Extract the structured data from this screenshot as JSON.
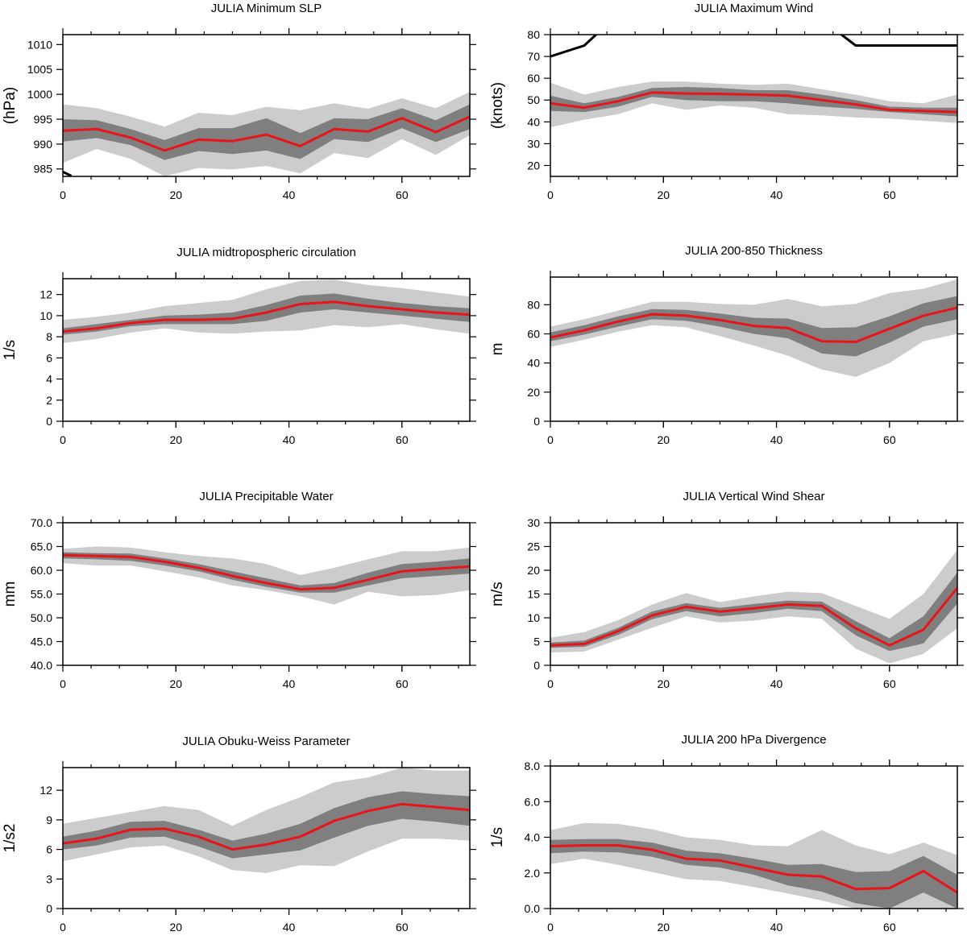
{
  "chart_data": [
    {
      "type": "line",
      "title": "JULIA Minimum SLP",
      "xlabel": "",
      "ylabel": "(hPa)",
      "xlim": [
        0,
        72
      ],
      "ylim": [
        983.5,
        1012
      ],
      "xticks": [
        0,
        20,
        40,
        60
      ],
      "yticks": [
        985,
        990,
        995,
        1000,
        1005,
        1010
      ],
      "ytick_labels": [
        "985",
        "990",
        "995",
        "1000",
        "1005",
        "1010"
      ],
      "x": [
        0,
        6,
        12,
        18,
        24,
        30,
        36,
        42,
        48,
        54,
        60,
        66,
        72
      ],
      "colors": {
        "mean": "#e8141a",
        "inner_band": "#7f7f7f",
        "outer_band": "#cccccc",
        "extra_line": "#000000"
      },
      "series": [
        {
          "values": [
            992.7,
            993.0,
            991.3,
            988.7,
            990.9,
            990.6,
            991.9,
            989.6,
            993.0,
            992.5,
            995.2,
            992.4,
            995.5
          ]
        },
        {
          "values": [
            995.0,
            994.8,
            993.0,
            990.8,
            993.2,
            993.2,
            995.2,
            992.2,
            995.2,
            995.0,
            997.2,
            994.8,
            998.0
          ]
        },
        {
          "values": [
            990.5,
            991.2,
            989.8,
            986.8,
            988.6,
            988.0,
            988.7,
            987.0,
            991.0,
            990.4,
            993.2,
            990.4,
            993.0
          ]
        },
        {
          "values": [
            998.0,
            997.2,
            995.5,
            993.5,
            996.3,
            995.8,
            997.5,
            996.8,
            998.2,
            997.1,
            999.2,
            997.2,
            1000.5
          ]
        },
        {
          "values": [
            986.2,
            989.0,
            987.0,
            983.5,
            985.2,
            984.9,
            985.6,
            984.1,
            988.2,
            987.2,
            991.0,
            987.8,
            991.8
          ]
        }
      ],
      "extra_line": {
        "x": [
          0,
          1.5
        ],
        "y": [
          984.4,
          983.6
        ]
      }
    },
    {
      "type": "line",
      "title": "JULIA Maximum Wind",
      "xlabel": "",
      "ylabel": "(knots)",
      "xlim": [
        0,
        72
      ],
      "ylim": [
        15,
        80
      ],
      "xticks": [
        0,
        20,
        40,
        60
      ],
      "yticks": [
        20,
        30,
        40,
        50,
        60,
        70,
        80
      ],
      "ytick_labels": [
        "20",
        "30",
        "40",
        "50",
        "60",
        "70",
        "80"
      ],
      "x": [
        0,
        6,
        12,
        18,
        24,
        30,
        36,
        42,
        48,
        54,
        60,
        66,
        72
      ],
      "colors": {
        "mean": "#e8141a",
        "inner_band": "#7f7f7f",
        "outer_band": "#cccccc",
        "extra_line": "#000000"
      },
      "series": [
        {
          "values": [
            48.5,
            46.5,
            49.5,
            53.5,
            53.0,
            52.8,
            52.5,
            52.0,
            50.0,
            48.0,
            45.5,
            45.0,
            44.5
          ]
        },
        {
          "values": [
            52.0,
            48.5,
            51.5,
            55.5,
            56.0,
            55.5,
            54.5,
            54.5,
            52.5,
            50.0,
            47.0,
            46.5,
            46.5
          ]
        },
        {
          "values": [
            45.0,
            44.5,
            47.0,
            51.5,
            50.0,
            49.5,
            49.5,
            48.5,
            47.0,
            46.0,
            44.5,
            43.5,
            42.5
          ]
        },
        {
          "values": [
            58.0,
            52.5,
            56.0,
            58.5,
            58.5,
            57.5,
            57.0,
            57.5,
            55.0,
            52.5,
            49.5,
            48.5,
            52.5
          ]
        },
        {
          "values": [
            37.5,
            41.0,
            43.5,
            48.5,
            45.5,
            47.5,
            46.5,
            43.5,
            43.0,
            42.0,
            41.5,
            40.5,
            39.5
          ]
        }
      ],
      "extra_line": {
        "x": [
          0,
          6,
          8.5,
          51,
          54,
          72
        ],
        "y": [
          70,
          75,
          81,
          81,
          75,
          75
        ]
      }
    },
    {
      "type": "line",
      "title": "JULIA midtropospheric circulation",
      "xlabel": "",
      "ylabel": "1/s",
      "xlim": [
        0,
        72
      ],
      "ylim": [
        0,
        13.5
      ],
      "xticks": [
        0,
        20,
        40,
        60
      ],
      "yticks": [
        0,
        2,
        4,
        6,
        8,
        10,
        12
      ],
      "ytick_labels": [
        "0",
        "2",
        "4",
        "6",
        "8",
        "10",
        "12"
      ],
      "x": [
        0,
        6,
        12,
        18,
        24,
        30,
        36,
        42,
        48,
        54,
        60,
        66,
        72
      ],
      "colors": {
        "mean": "#e8141a",
        "inner_band": "#7f7f7f",
        "outer_band": "#cccccc"
      },
      "series": [
        {
          "values": [
            8.5,
            8.8,
            9.3,
            9.6,
            9.6,
            9.7,
            10.3,
            11.1,
            11.3,
            10.9,
            10.6,
            10.3,
            10.1
          ]
        },
        {
          "values": [
            8.8,
            9.2,
            9.6,
            10.0,
            10.1,
            10.3,
            11.0,
            11.9,
            12.1,
            11.6,
            11.2,
            10.9,
            10.7
          ]
        },
        {
          "values": [
            8.2,
            8.5,
            9.0,
            9.2,
            9.2,
            9.2,
            9.5,
            10.3,
            10.6,
            10.3,
            10.0,
            9.7,
            9.4
          ]
        },
        {
          "values": [
            9.6,
            9.9,
            10.3,
            10.9,
            11.2,
            11.5,
            12.5,
            13.3,
            13.4,
            12.9,
            12.6,
            12.2,
            11.8
          ]
        },
        {
          "values": [
            7.4,
            7.8,
            8.4,
            8.8,
            8.4,
            8.3,
            8.5,
            8.6,
            9.1,
            8.9,
            9.2,
            8.7,
            8.3
          ]
        }
      ]
    },
    {
      "type": "line",
      "title": "JULIA 200-850 Thickness",
      "xlabel": "",
      "ylabel": "m",
      "xlim": [
        0,
        72
      ],
      "ylim": [
        0,
        99
      ],
      "xticks": [
        0,
        20,
        40,
        60
      ],
      "yticks": [
        0,
        20,
        40,
        60,
        80
      ],
      "ytick_labels": [
        "0",
        "20",
        "40",
        "60",
        "80"
      ],
      "x": [
        0,
        6,
        12,
        18,
        24,
        30,
        36,
        42,
        48,
        54,
        60,
        66,
        72
      ],
      "colors": {
        "mean": "#e8141a",
        "inner_band": "#7f7f7f",
        "outer_band": "#cccccc"
      },
      "series": [
        {
          "values": [
            57.5,
            62.5,
            68.5,
            73.5,
            72.5,
            69.5,
            65.5,
            64.0,
            55.0,
            54.5,
            63.5,
            72.5,
            78.0
          ]
        },
        {
          "values": [
            61.0,
            66.0,
            72.0,
            77.0,
            76.5,
            74.0,
            71.0,
            70.5,
            64.0,
            64.5,
            72.0,
            81.0,
            86.0
          ]
        },
        {
          "values": [
            55.0,
            59.5,
            65.0,
            70.0,
            69.0,
            65.0,
            60.0,
            57.0,
            46.5,
            44.5,
            54.0,
            65.0,
            70.0
          ]
        },
        {
          "values": [
            65.0,
            70.0,
            76.0,
            82.0,
            82.0,
            80.5,
            80.0,
            84.0,
            79.0,
            80.5,
            88.0,
            91.0,
            97.5
          ]
        },
        {
          "values": [
            51.0,
            56.0,
            61.5,
            66.0,
            64.5,
            58.5,
            52.0,
            45.0,
            35.5,
            30.5,
            40.0,
            55.0,
            60.0
          ]
        }
      ]
    },
    {
      "type": "line",
      "title": "JULIA Precipitable Water",
      "xlabel": "",
      "ylabel": "mm",
      "xlim": [
        0,
        72
      ],
      "ylim": [
        40,
        70
      ],
      "xticks": [
        0,
        20,
        40,
        60
      ],
      "yticks": [
        40,
        45,
        50,
        55,
        60,
        65,
        70
      ],
      "ytick_labels": [
        "40.0",
        "45.0",
        "50.0",
        "55.0",
        "60.0",
        "65.0",
        "70.0"
      ],
      "x": [
        0,
        6,
        12,
        18,
        24,
        30,
        36,
        42,
        48,
        54,
        60,
        66,
        72
      ],
      "colors": {
        "mean": "#e8141a",
        "inner_band": "#7f7f7f",
        "outer_band": "#cccccc"
      },
      "series": [
        {
          "values": [
            63.2,
            63.0,
            62.8,
            61.8,
            60.5,
            58.8,
            57.3,
            56.0,
            56.3,
            58.0,
            59.8,
            60.3,
            60.8
          ]
        },
        {
          "values": [
            63.8,
            63.6,
            63.5,
            62.5,
            61.3,
            59.8,
            58.3,
            56.8,
            57.3,
            59.5,
            61.3,
            61.8,
            62.5
          ]
        },
        {
          "values": [
            62.5,
            62.3,
            62.0,
            61.0,
            59.8,
            58.0,
            56.5,
            55.3,
            55.3,
            56.8,
            58.3,
            58.8,
            59.3
          ]
        },
        {
          "values": [
            64.5,
            65.0,
            64.8,
            63.8,
            63.0,
            62.5,
            61.3,
            59.0,
            60.5,
            62.3,
            64.0,
            64.0,
            64.8
          ]
        },
        {
          "values": [
            61.5,
            61.0,
            61.0,
            59.8,
            58.5,
            56.8,
            55.8,
            54.5,
            52.8,
            55.5,
            54.5,
            54.8,
            55.8
          ]
        }
      ]
    },
    {
      "type": "line",
      "title": "JULIA Vertical Wind Shear",
      "xlabel": "",
      "ylabel": "m/s",
      "xlim": [
        0,
        72
      ],
      "ylim": [
        0,
        30
      ],
      "xticks": [
        0,
        20,
        40,
        60
      ],
      "yticks": [
        0,
        5,
        10,
        15,
        20,
        25,
        30
      ],
      "ytick_labels": [
        "0",
        "5",
        "10",
        "15",
        "20",
        "25",
        "30"
      ],
      "x": [
        0,
        6,
        12,
        18,
        24,
        30,
        36,
        42,
        48,
        54,
        60,
        66,
        72
      ],
      "colors": {
        "mean": "#e8141a",
        "inner_band": "#7f7f7f",
        "outer_band": "#cccccc"
      },
      "series": [
        {
          "values": [
            4.2,
            4.5,
            7.2,
            10.5,
            12.3,
            11.3,
            12.0,
            12.8,
            12.5,
            7.8,
            4.2,
            7.5,
            16.3
          ]
        },
        {
          "values": [
            4.8,
            5.2,
            7.9,
            11.3,
            13.1,
            12.1,
            12.9,
            13.6,
            13.4,
            9.3,
            5.7,
            10.3,
            19.5
          ]
        },
        {
          "values": [
            3.7,
            3.9,
            6.4,
            9.7,
            11.4,
            10.3,
            11.0,
            11.9,
            11.4,
            6.3,
            3.0,
            4.6,
            13.0
          ]
        },
        {
          "values": [
            5.8,
            7.0,
            9.5,
            12.8,
            15.2,
            13.3,
            14.5,
            15.5,
            15.2,
            12.5,
            9.8,
            15.0,
            24.3
          ]
        },
        {
          "values": [
            2.7,
            2.9,
            5.4,
            7.9,
            10.3,
            9.0,
            9.4,
            10.3,
            9.8,
            3.5,
            0.4,
            2.4,
            7.8
          ]
        }
      ]
    },
    {
      "type": "line",
      "title": "JULIA Obuku-Weiss Parameter",
      "xlabel": "",
      "ylabel": "1/s2",
      "xlim": [
        0,
        72
      ],
      "ylim": [
        0,
        14.3
      ],
      "xticks": [
        0,
        20,
        40,
        60
      ],
      "yticks": [
        0,
        3,
        6,
        9,
        12
      ],
      "ytick_labels": [
        "0",
        "3",
        "6",
        "9",
        "12"
      ],
      "x": [
        0,
        6,
        12,
        18,
        24,
        30,
        36,
        42,
        48,
        54,
        60,
        66,
        72
      ],
      "colors": {
        "mean": "#e8141a",
        "inner_band": "#7f7f7f",
        "outer_band": "#cccccc"
      },
      "series": [
        {
          "values": [
            6.6,
            7.1,
            8.0,
            8.1,
            7.3,
            6.0,
            6.5,
            7.3,
            8.9,
            9.9,
            10.6,
            10.3,
            10.0
          ]
        },
        {
          "values": [
            7.3,
            7.9,
            8.8,
            8.9,
            8.0,
            6.9,
            7.6,
            8.6,
            10.2,
            11.3,
            11.9,
            11.6,
            11.4
          ]
        },
        {
          "values": [
            6.0,
            6.4,
            7.2,
            7.3,
            6.3,
            5.1,
            5.5,
            5.9,
            7.2,
            8.4,
            9.1,
            8.8,
            8.4
          ]
        },
        {
          "values": [
            8.6,
            9.2,
            9.8,
            10.4,
            10.0,
            8.4,
            10.0,
            11.3,
            12.8,
            13.3,
            14.3,
            14.0,
            14.0
          ]
        },
        {
          "values": [
            4.8,
            5.5,
            6.2,
            6.4,
            5.3,
            3.9,
            3.6,
            4.4,
            4.3,
            5.8,
            7.1,
            7.1,
            6.9
          ]
        }
      ]
    },
    {
      "type": "line",
      "title": "JULIA 200 hPa Divergence",
      "xlabel": "",
      "ylabel": "1/s",
      "xlim": [
        0,
        72
      ],
      "ylim": [
        0,
        8
      ],
      "xticks": [
        0,
        20,
        40,
        60
      ],
      "yticks": [
        0,
        2,
        4,
        6,
        8
      ],
      "ytick_labels": [
        "0.0",
        "2.0",
        "4.0",
        "6.0",
        "8.0"
      ],
      "x": [
        0,
        6,
        12,
        18,
        24,
        30,
        36,
        42,
        48,
        54,
        60,
        66,
        72
      ],
      "colors": {
        "mean": "#e8141a",
        "inner_band": "#7f7f7f",
        "outer_band": "#cccccc"
      },
      "series": [
        {
          "values": [
            3.5,
            3.55,
            3.55,
            3.3,
            2.8,
            2.7,
            2.3,
            1.9,
            1.8,
            1.1,
            1.15,
            2.1,
            0.9
          ]
        },
        {
          "values": [
            3.85,
            3.9,
            3.9,
            3.7,
            3.25,
            3.1,
            2.8,
            2.45,
            2.5,
            2.05,
            2.1,
            2.95,
            1.9
          ]
        },
        {
          "values": [
            3.1,
            3.2,
            3.15,
            2.9,
            2.45,
            2.3,
            1.9,
            1.3,
            0.95,
            0.3,
            0.0,
            0.9,
            0.0
          ]
        },
        {
          "values": [
            4.4,
            4.8,
            4.75,
            4.45,
            4.0,
            3.85,
            3.55,
            3.5,
            4.4,
            3.55,
            3.05,
            3.7,
            3.0
          ]
        },
        {
          "values": [
            2.5,
            2.8,
            2.45,
            2.05,
            1.65,
            1.55,
            1.2,
            0.85,
            0.45,
            -0.2,
            -0.4,
            -0.4,
            -0.4
          ]
        }
      ]
    }
  ]
}
